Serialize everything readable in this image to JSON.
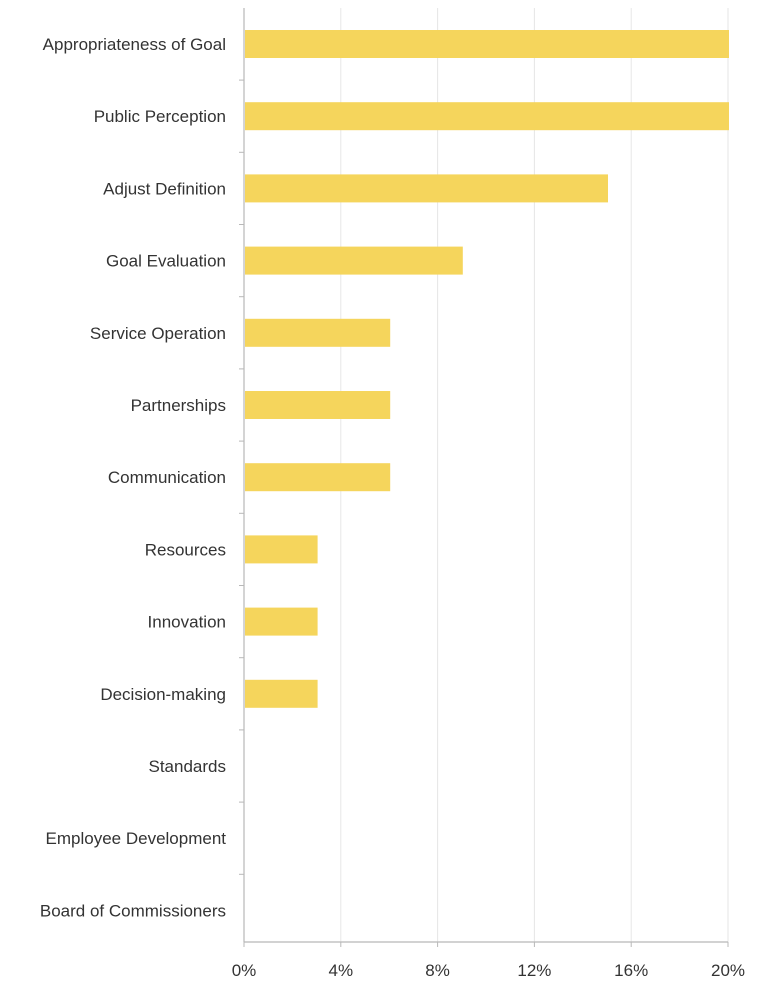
{
  "chart_data": {
    "type": "bar",
    "orientation": "horizontal",
    "categories": [
      "Appropriateness of Goal",
      "Public Perception",
      "Adjust Definition",
      "Goal Evaluation",
      "Service Operation",
      "Partnerships",
      "Communication",
      "Resources",
      "Innovation",
      "Decision-making",
      "Standards",
      "Employee Development",
      "Board of Commissioners"
    ],
    "values": [
      20,
      20,
      15,
      9,
      6,
      6,
      6,
      3,
      3,
      3,
      0,
      0,
      0
    ],
    "xlim": [
      0,
      20
    ],
    "xticks": [
      0,
      4,
      8,
      12,
      16,
      20
    ],
    "xtick_labels": [
      "0%",
      "4%",
      "8%",
      "12%",
      "16%",
      "20%"
    ],
    "grid": "vertical",
    "bar_color": "#f5d55c",
    "grid_color": "#e6e6e6",
    "axis_color": "#b8b8b8"
  }
}
